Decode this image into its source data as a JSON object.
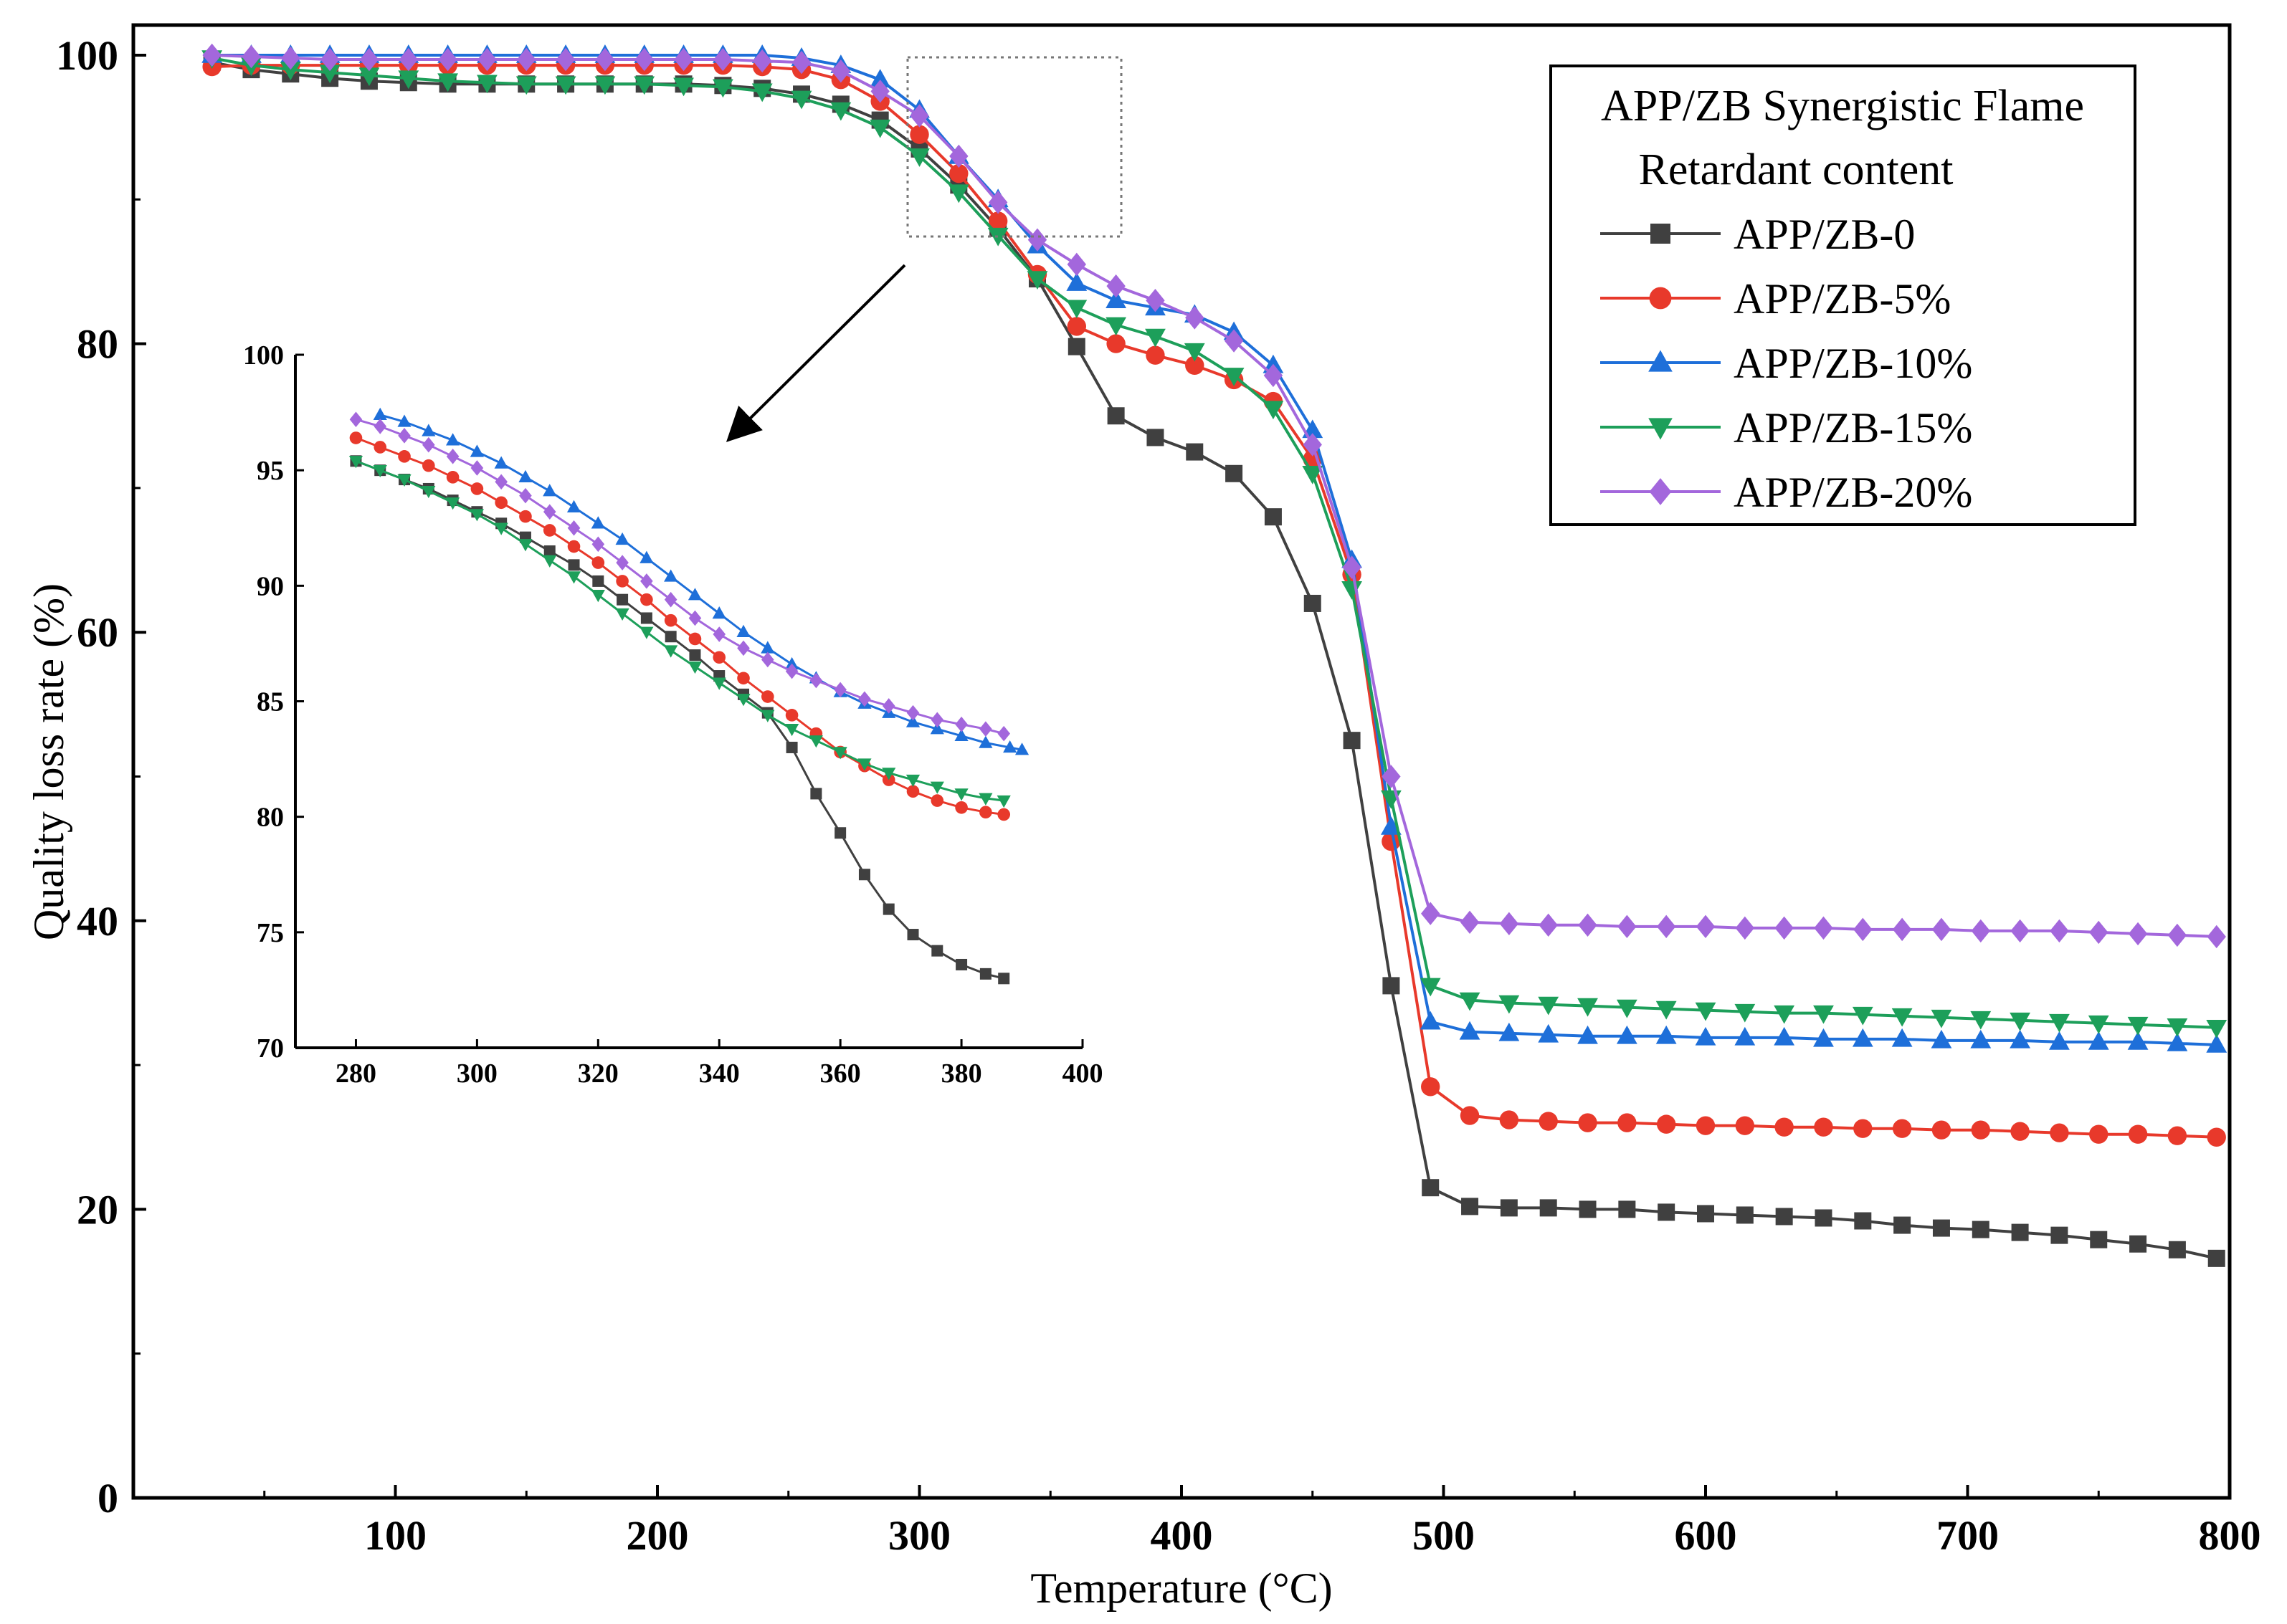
{
  "chart_data": [
    {
      "type": "line",
      "xlabel": "Temperature (°C)",
      "ylabel": "Quality loss rate (%)",
      "xlim": [
        0,
        800
      ],
      "ylim": [
        0,
        100
      ],
      "xticks": [
        100,
        200,
        300,
        400,
        500,
        600,
        700,
        800
      ],
      "yticks": [
        0,
        20,
        40,
        60,
        80,
        100
      ],
      "legend": {
        "title_line1": "APP/ZB Synergistic Flame",
        "title_line2": "Retardant content",
        "position": "top-right"
      },
      "series": [
        {
          "name": "APP/ZB-0",
          "color": "#404040",
          "marker": "square",
          "x": [
            30,
            45,
            60,
            75,
            90,
            105,
            120,
            135,
            150,
            165,
            180,
            195,
            210,
            225,
            240,
            255,
            270,
            285,
            300,
            315,
            330,
            345,
            360,
            375,
            390,
            405,
            420,
            435,
            450,
            465,
            480,
            495,
            510,
            525,
            540,
            555,
            570,
            585,
            600,
            615,
            630,
            645,
            660,
            675,
            690,
            705,
            720,
            735,
            750,
            765,
            780,
            795
          ],
          "y": [
            99.5,
            99.0,
            98.7,
            98.4,
            98.2,
            98.1,
            98.0,
            98.0,
            98.0,
            98.0,
            98.0,
            98.0,
            98.0,
            97.9,
            97.7,
            97.3,
            96.6,
            95.5,
            93.5,
            91.0,
            88.0,
            84.5,
            79.8,
            75.0,
            73.5,
            72.5,
            71.0,
            68.0,
            62.0,
            52.5,
            35.5,
            21.5,
            20.2,
            20.1,
            20.1,
            20.0,
            20.0,
            19.8,
            19.7,
            19.6,
            19.5,
            19.4,
            19.2,
            18.9,
            18.7,
            18.6,
            18.4,
            18.2,
            17.9,
            17.6,
            17.2,
            16.6
          ]
        },
        {
          "name": "APP/ZB-5%",
          "color": "#e8392b",
          "marker": "circle",
          "x": [
            30,
            45,
            60,
            75,
            90,
            105,
            120,
            135,
            150,
            165,
            180,
            195,
            210,
            225,
            240,
            255,
            270,
            285,
            300,
            315,
            330,
            345,
            360,
            375,
            390,
            405,
            420,
            435,
            450,
            465,
            480,
            495,
            510,
            525,
            540,
            555,
            570,
            585,
            600,
            615,
            630,
            645,
            660,
            675,
            690,
            705,
            720,
            735,
            750,
            765,
            780,
            795
          ],
          "y": [
            99.2,
            99.3,
            99.3,
            99.3,
            99.3,
            99.3,
            99.3,
            99.3,
            99.3,
            99.3,
            99.3,
            99.3,
            99.3,
            99.3,
            99.2,
            99.0,
            98.3,
            96.8,
            94.5,
            91.8,
            88.5,
            84.8,
            81.2,
            80.0,
            79.2,
            78.5,
            77.5,
            76.0,
            72.0,
            64.0,
            45.5,
            28.5,
            26.5,
            26.2,
            26.1,
            26.0,
            26.0,
            25.9,
            25.8,
            25.8,
            25.7,
            25.7,
            25.6,
            25.6,
            25.5,
            25.5,
            25.4,
            25.3,
            25.2,
            25.2,
            25.1,
            25.0
          ]
        },
        {
          "name": "APP/ZB-10%",
          "color": "#1e6fd9",
          "marker": "triangle-up",
          "x": [
            30,
            45,
            60,
            75,
            90,
            105,
            120,
            135,
            150,
            165,
            180,
            195,
            210,
            225,
            240,
            255,
            270,
            285,
            300,
            315,
            330,
            345,
            360,
            375,
            390,
            405,
            420,
            435,
            450,
            465,
            480,
            495,
            510,
            525,
            540,
            555,
            570,
            585,
            600,
            615,
            630,
            645,
            660,
            675,
            690,
            705,
            720,
            735,
            750,
            765,
            780,
            795
          ],
          "y": [
            100.0,
            100.0,
            100.0,
            100.0,
            100.0,
            100.0,
            100.0,
            100.0,
            100.0,
            100.0,
            100.0,
            100.0,
            100.0,
            100.0,
            100.0,
            99.8,
            99.3,
            98.3,
            96.2,
            93.0,
            90.0,
            86.8,
            84.2,
            83.0,
            82.5,
            82.0,
            80.8,
            78.5,
            74.0,
            65.0,
            46.5,
            33.0,
            32.3,
            32.2,
            32.1,
            32.0,
            32.0,
            32.0,
            31.9,
            31.9,
            31.9,
            31.8,
            31.8,
            31.8,
            31.7,
            31.7,
            31.7,
            31.6,
            31.6,
            31.6,
            31.5,
            31.4
          ]
        },
        {
          "name": "APP/ZB-15%",
          "color": "#1d9f5a",
          "marker": "triangle-down",
          "x": [
            30,
            45,
            60,
            75,
            90,
            105,
            120,
            135,
            150,
            165,
            180,
            195,
            210,
            225,
            240,
            255,
            270,
            285,
            300,
            315,
            330,
            345,
            360,
            375,
            390,
            405,
            420,
            435,
            450,
            465,
            480,
            495,
            510,
            525,
            540,
            555,
            570,
            585,
            600,
            615,
            630,
            645,
            660,
            675,
            690,
            705,
            720,
            735,
            750,
            765,
            780,
            795
          ],
          "y": [
            99.8,
            99.3,
            99.0,
            98.8,
            98.6,
            98.4,
            98.2,
            98.1,
            98.0,
            98.0,
            98.0,
            98.0,
            97.9,
            97.8,
            97.5,
            97.0,
            96.2,
            95.0,
            93.0,
            90.5,
            87.5,
            84.5,
            82.5,
            81.3,
            80.5,
            79.5,
            77.8,
            75.5,
            71.0,
            63.0,
            48.5,
            35.5,
            34.5,
            34.3,
            34.2,
            34.1,
            34.0,
            33.9,
            33.8,
            33.7,
            33.6,
            33.6,
            33.5,
            33.4,
            33.3,
            33.2,
            33.1,
            33.0,
            32.9,
            32.8,
            32.7,
            32.6
          ]
        },
        {
          "name": "APP/ZB-20%",
          "color": "#a367dc",
          "marker": "diamond",
          "x": [
            30,
            45,
            60,
            75,
            90,
            105,
            120,
            135,
            150,
            165,
            180,
            195,
            210,
            225,
            240,
            255,
            270,
            285,
            300,
            315,
            330,
            345,
            360,
            375,
            390,
            405,
            420,
            435,
            450,
            465,
            480,
            495,
            510,
            525,
            540,
            555,
            570,
            585,
            600,
            615,
            630,
            645,
            660,
            675,
            690,
            705,
            720,
            735,
            750,
            765,
            780,
            795
          ],
          "y": [
            100.0,
            99.9,
            99.8,
            99.7,
            99.7,
            99.7,
            99.7,
            99.7,
            99.7,
            99.7,
            99.7,
            99.7,
            99.7,
            99.7,
            99.6,
            99.5,
            98.9,
            97.5,
            95.8,
            93.0,
            89.8,
            87.2,
            85.5,
            84.0,
            83.0,
            81.8,
            80.2,
            77.8,
            73.0,
            64.5,
            50.0,
            40.5,
            39.9,
            39.8,
            39.7,
            39.7,
            39.6,
            39.6,
            39.6,
            39.5,
            39.5,
            39.5,
            39.4,
            39.4,
            39.4,
            39.3,
            39.3,
            39.3,
            39.2,
            39.1,
            39.0,
            38.9
          ]
        }
      ]
    },
    {
      "type": "line",
      "role": "inset",
      "xlim": [
        270,
        400
      ],
      "ylim": [
        70,
        100
      ],
      "xticks": [
        280,
        300,
        320,
        340,
        360,
        380,
        400
      ],
      "yticks": [
        70,
        75,
        80,
        85,
        90,
        95,
        100
      ],
      "series": [
        {
          "name": "APP/ZB-0",
          "color": "#404040",
          "marker": "square",
          "x": [
            280,
            284,
            288,
            292,
            296,
            300,
            304,
            308,
            312,
            316,
            320,
            324,
            328,
            332,
            336,
            340,
            344,
            348,
            352,
            356,
            360,
            364,
            368,
            372,
            376,
            380,
            384,
            387
          ],
          "y": [
            95.4,
            95.0,
            94.6,
            94.2,
            93.7,
            93.2,
            92.7,
            92.1,
            91.5,
            90.9,
            90.2,
            89.4,
            88.6,
            87.8,
            87.0,
            86.1,
            85.3,
            84.5,
            83.0,
            81.0,
            79.3,
            77.5,
            76.0,
            74.9,
            74.2,
            73.6,
            73.2,
            73.0
          ]
        },
        {
          "name": "APP/ZB-5%",
          "color": "#e8392b",
          "marker": "circle",
          "x": [
            280,
            284,
            288,
            292,
            296,
            300,
            304,
            308,
            312,
            316,
            320,
            324,
            328,
            332,
            336,
            340,
            344,
            348,
            352,
            356,
            360,
            364,
            368,
            372,
            376,
            380,
            384,
            387
          ],
          "y": [
            96.4,
            96.0,
            95.6,
            95.2,
            94.7,
            94.2,
            93.6,
            93.0,
            92.4,
            91.7,
            91.0,
            90.2,
            89.4,
            88.5,
            87.7,
            86.9,
            86.0,
            85.2,
            84.4,
            83.6,
            82.8,
            82.2,
            81.6,
            81.1,
            80.7,
            80.4,
            80.2,
            80.1
          ]
        },
        {
          "name": "APP/ZB-10%",
          "color": "#1e6fd9",
          "marker": "triangle-up",
          "x": [
            284,
            288,
            292,
            296,
            300,
            304,
            308,
            312,
            316,
            320,
            324,
            328,
            332,
            336,
            340,
            344,
            348,
            352,
            356,
            360,
            364,
            368,
            372,
            376,
            380,
            384,
            388,
            390
          ],
          "y": [
            97.4,
            97.1,
            96.7,
            96.3,
            95.8,
            95.3,
            94.7,
            94.1,
            93.4,
            92.7,
            92.0,
            91.2,
            90.4,
            89.6,
            88.8,
            88.0,
            87.3,
            86.6,
            86.0,
            85.4,
            84.9,
            84.5,
            84.1,
            83.8,
            83.5,
            83.2,
            83.0,
            82.9
          ]
        },
        {
          "name": "APP/ZB-15%",
          "color": "#1d9f5a",
          "marker": "triangle-down",
          "x": [
            280,
            284,
            288,
            292,
            296,
            300,
            304,
            308,
            312,
            316,
            320,
            324,
            328,
            332,
            336,
            340,
            344,
            348,
            352,
            356,
            360,
            364,
            368,
            372,
            376,
            380,
            384,
            387
          ],
          "y": [
            95.4,
            95.0,
            94.6,
            94.1,
            93.6,
            93.1,
            92.5,
            91.8,
            91.1,
            90.4,
            89.6,
            88.8,
            88.0,
            87.2,
            86.5,
            85.8,
            85.1,
            84.4,
            83.8,
            83.3,
            82.8,
            82.3,
            81.9,
            81.6,
            81.3,
            81.0,
            80.8,
            80.7
          ]
        },
        {
          "name": "APP/ZB-20%",
          "color": "#a367dc",
          "marker": "diamond",
          "x": [
            280,
            284,
            288,
            292,
            296,
            300,
            304,
            308,
            312,
            316,
            320,
            324,
            328,
            332,
            336,
            340,
            344,
            348,
            352,
            356,
            360,
            364,
            368,
            372,
            376,
            380,
            384,
            387
          ],
          "y": [
            97.2,
            96.9,
            96.5,
            96.1,
            95.6,
            95.1,
            94.5,
            93.9,
            93.2,
            92.5,
            91.8,
            91.0,
            90.2,
            89.4,
            88.6,
            87.9,
            87.3,
            86.8,
            86.3,
            85.9,
            85.5,
            85.1,
            84.8,
            84.5,
            84.2,
            84.0,
            83.8,
            83.6
          ]
        }
      ]
    }
  ]
}
